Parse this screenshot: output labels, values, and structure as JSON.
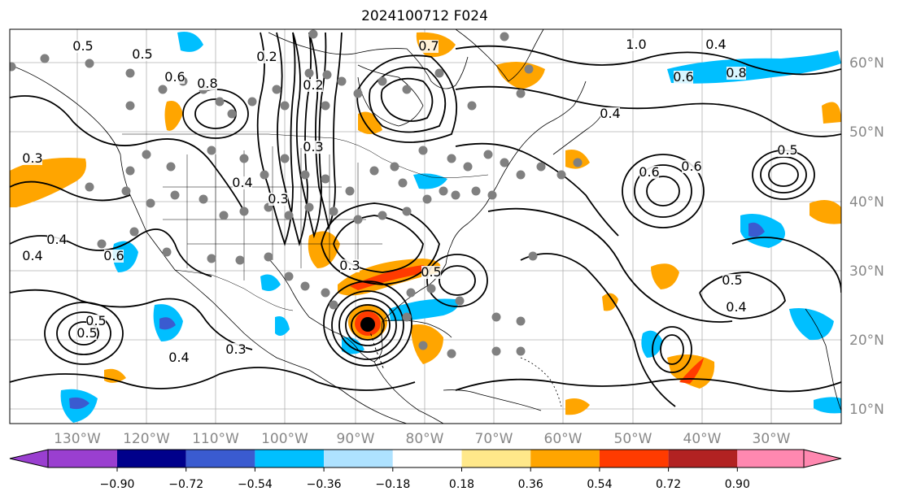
{
  "title": "2024100712 F024",
  "lon_ticks": [
    "130°W",
    "120°W",
    "110°W",
    "100°W",
    "90°W",
    "80°W",
    "70°W",
    "60°W",
    "50°W",
    "40°W",
    "30°W"
  ],
  "lat_ticks": [
    "60°N",
    "50°N",
    "40°N",
    "30°N",
    "20°N",
    "10°N"
  ],
  "colorbar": {
    "ticks": [
      "−0.90",
      "−0.72",
      "−0.54",
      "−0.36",
      "−0.18",
      "0.18",
      "0.36",
      "0.54",
      "0.72",
      "0.90"
    ],
    "colors": [
      "#9a3fd0",
      "#00008b",
      "#3a5bd0",
      "#00bfff",
      "#aee2ff",
      "#ffffff",
      "#ffe88a",
      "#ffa500",
      "#ff3b00",
      "#b22222",
      "#ff88b0"
    ]
  },
  "contour_labels": [
    "0.5",
    "0.5",
    "0.6",
    "0.8",
    "0.2",
    "0.2",
    "0.3",
    "0.3",
    "0.4",
    "0.4",
    "0.4",
    "0.6",
    "0.5",
    "0.5",
    "0.4",
    "0.3",
    "0.7",
    "0.5",
    "0.4",
    "0.6",
    "0.8",
    "0.6",
    "1.0",
    "0.5",
    "0.6",
    "0.4",
    "0.3",
    "0.3",
    "0.4",
    "0.5"
  ],
  "colors": {
    "contour": "#000000",
    "grid": "#b0b0b0",
    "station": "#808080",
    "storm_center": "#000000"
  }
}
